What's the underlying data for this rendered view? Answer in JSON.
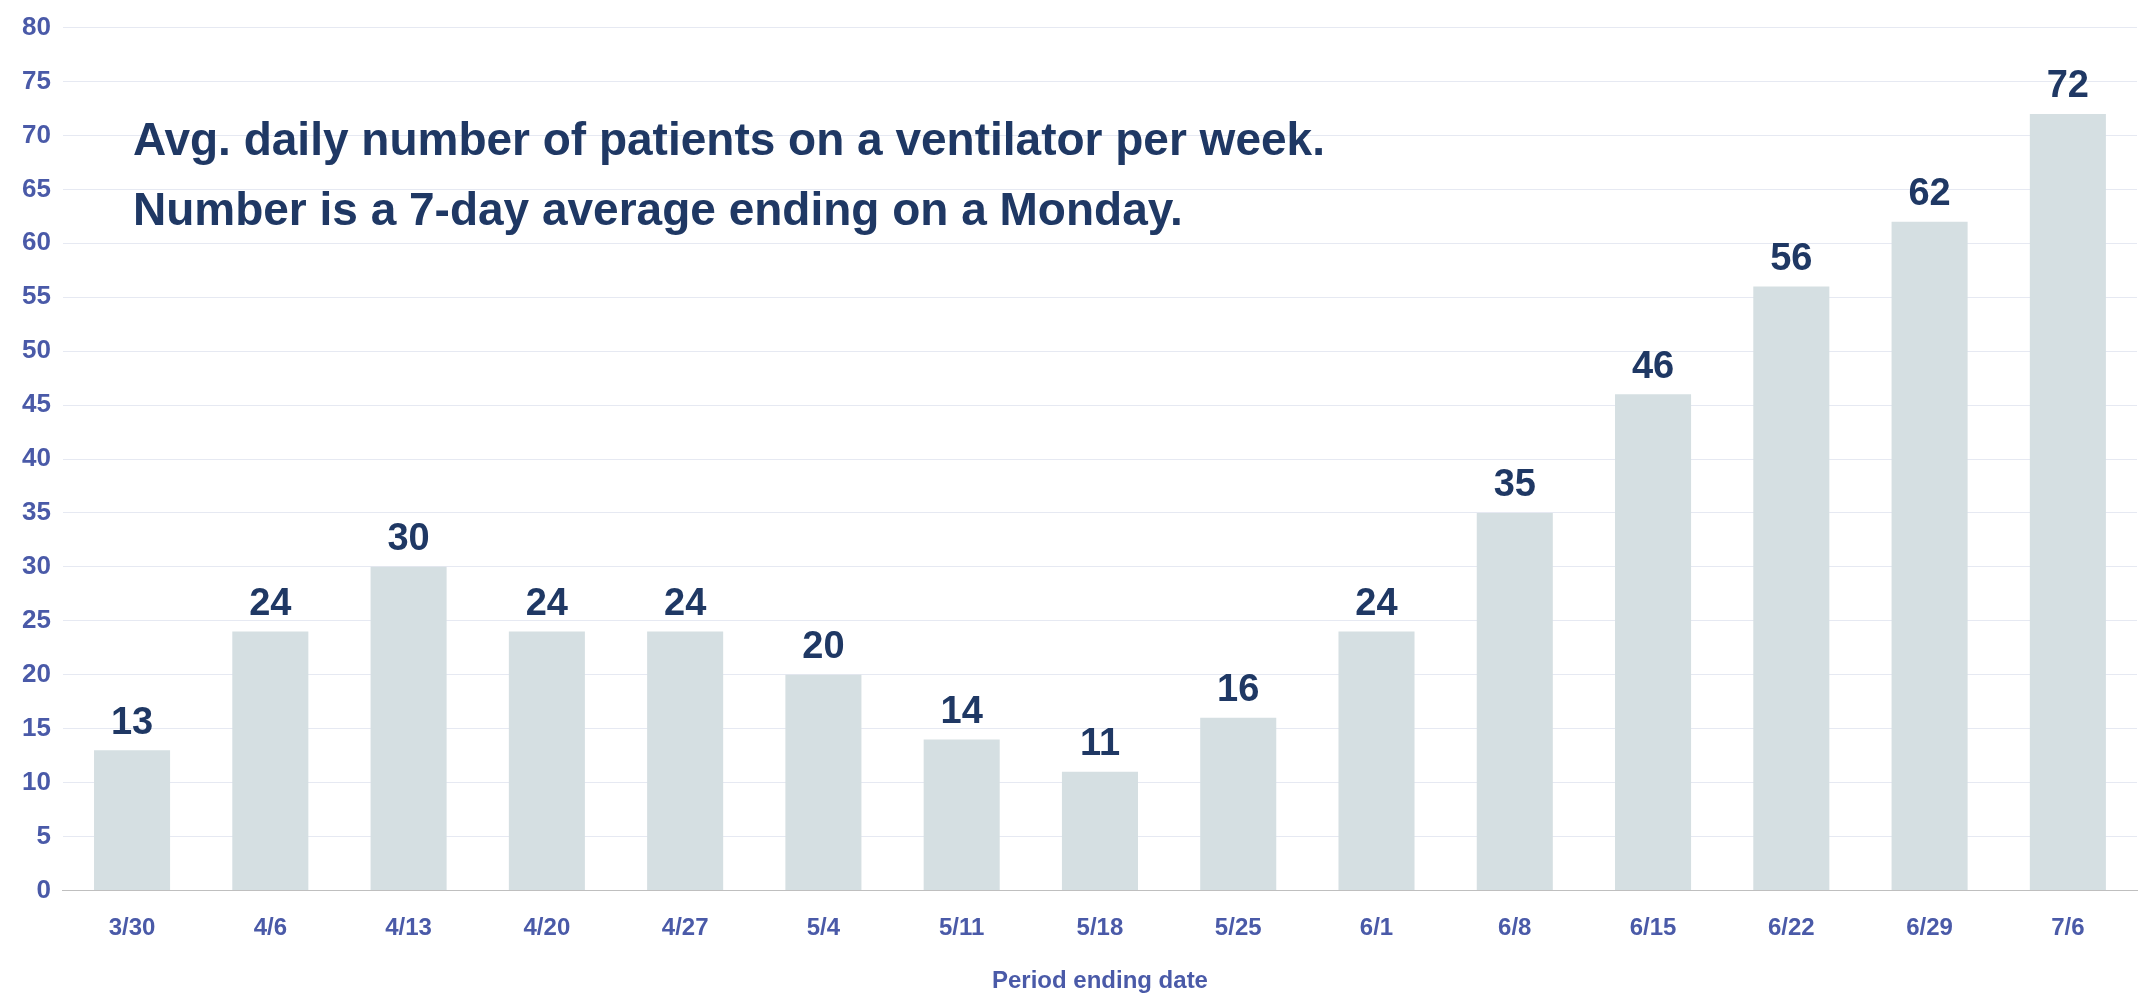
{
  "chart_data": {
    "type": "bar",
    "title": "Avg. daily number of patients on a ventilator per week.",
    "subtitle": "Number is a 7-day average ending on a Monday.",
    "xlabel": "Period ending date",
    "categories": [
      "3/30",
      "4/6",
      "4/13",
      "4/20",
      "4/27",
      "5/4",
      "5/11",
      "5/18",
      "5/25",
      "6/1",
      "6/8",
      "6/15",
      "6/22",
      "6/29",
      "7/6"
    ],
    "values": [
      13,
      24,
      30,
      24,
      24,
      20,
      14,
      11,
      16,
      24,
      35,
      46,
      56,
      62,
      72
    ],
    "color": "#d5dfe2",
    "ylim": [
      0,
      80
    ],
    "yticks": [
      0,
      5,
      10,
      15,
      20,
      25,
      30,
      35,
      40,
      45,
      50,
      55,
      60,
      65,
      70,
      75,
      80
    ],
    "grid": "y",
    "data_labels": true,
    "legend": false
  }
}
